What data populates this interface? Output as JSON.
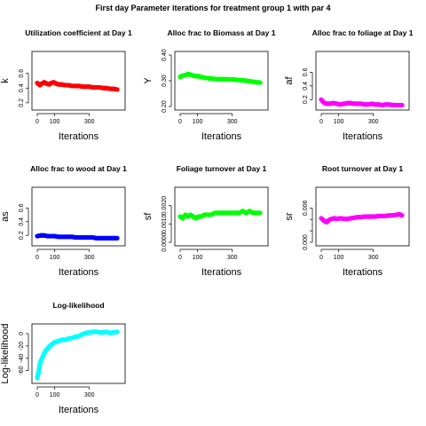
{
  "figure": {
    "title": "First day Parameter iterations for treatment group 1 with par 4"
  },
  "chart_data": [
    {
      "type": "scatter",
      "title": "Utilization coefficient at Day 1",
      "xlabel": "Iterations",
      "ylabel": "k",
      "color": "#ff0000",
      "xlim": [
        0,
        475
      ],
      "ylim": [
        0.15,
        0.85
      ],
      "xticks": [
        0,
        100,
        300
      ],
      "yticks": [
        0.2,
        0.4,
        0.6
      ],
      "ytick_labels": [
        "0.2",
        "0.4",
        "0.6"
      ],
      "x": [
        0,
        15,
        25,
        40,
        55,
        70,
        80,
        95,
        110,
        125,
        140,
        160,
        180,
        200,
        220,
        240,
        260,
        280,
        300,
        320,
        340,
        360,
        380,
        400,
        420,
        440,
        460
      ],
      "y": [
        0.47,
        0.44,
        0.46,
        0.48,
        0.46,
        0.45,
        0.47,
        0.48,
        0.46,
        0.45,
        0.45,
        0.44,
        0.44,
        0.43,
        0.43,
        0.43,
        0.42,
        0.42,
        0.42,
        0.41,
        0.41,
        0.41,
        0.4,
        0.4,
        0.39,
        0.39,
        0.38
      ]
    },
    {
      "type": "scatter",
      "title": "Alloc frac to Biomass at Day 1",
      "xlabel": "Iterations",
      "ylabel": "Y",
      "color": "#00ff00",
      "xlim": [
        0,
        475
      ],
      "ylim": [
        0.2,
        0.4
      ],
      "xticks": [
        0,
        100,
        300
      ],
      "yticks": [
        0.2,
        0.3,
        0.4
      ],
      "ytick_labels": [
        "0.20",
        "0.30",
        "0.40"
      ],
      "x": [
        0,
        15,
        30,
        45,
        60,
        75,
        90,
        105,
        120,
        140,
        160,
        180,
        200,
        220,
        240,
        260,
        280,
        300,
        320,
        340,
        360,
        380,
        400,
        420,
        440,
        460
      ],
      "y": [
        0.315,
        0.32,
        0.322,
        0.326,
        0.324,
        0.32,
        0.318,
        0.318,
        0.315,
        0.312,
        0.31,
        0.309,
        0.307,
        0.306,
        0.306,
        0.306,
        0.305,
        0.305,
        0.304,
        0.303,
        0.302,
        0.3,
        0.298,
        0.296,
        0.294,
        0.293
      ]
    },
    {
      "type": "scatter",
      "title": "Alloc frac to foliage at Day 1",
      "xlabel": "Iterations",
      "ylabel": "af",
      "color": "#ff00ff",
      "xlim": [
        0,
        475
      ],
      "ylim": [
        0.1,
        0.85
      ],
      "xticks": [
        0,
        100,
        300
      ],
      "yticks": [
        0.2,
        0.4,
        0.6
      ],
      "ytick_labels": [
        "0.2",
        "0.4",
        "0.6"
      ],
      "x": [
        0,
        10,
        20,
        35,
        50,
        70,
        90,
        110,
        130,
        150,
        170,
        190,
        210,
        230,
        250,
        270,
        290,
        310,
        330,
        350,
        370,
        390,
        410,
        430,
        450,
        465
      ],
      "y": [
        0.2,
        0.17,
        0.15,
        0.14,
        0.14,
        0.15,
        0.14,
        0.13,
        0.14,
        0.15,
        0.15,
        0.14,
        0.14,
        0.14,
        0.13,
        0.13,
        0.14,
        0.13,
        0.13,
        0.12,
        0.13,
        0.13,
        0.12,
        0.12,
        0.12,
        0.12
      ]
    },
    {
      "type": "scatter",
      "title": "Alloc frac to wood at Day 1",
      "xlabel": "Iterations",
      "ylabel": "as",
      "color": "#0000ff",
      "xlim": [
        0,
        475
      ],
      "ylim": [
        0.1,
        0.85
      ],
      "xticks": [
        0,
        100,
        300
      ],
      "yticks": [
        0.2,
        0.4,
        0.6
      ],
      "ytick_labels": [
        "0.2",
        "0.4",
        "0.6"
      ],
      "x": [
        0,
        20,
        40,
        60,
        80,
        100,
        120,
        140,
        160,
        180,
        200,
        220,
        240,
        260,
        280,
        300,
        320,
        340,
        360,
        380,
        400,
        420,
        440,
        460
      ],
      "y": [
        0.19,
        0.2,
        0.2,
        0.19,
        0.19,
        0.19,
        0.18,
        0.18,
        0.18,
        0.18,
        0.18,
        0.17,
        0.17,
        0.17,
        0.17,
        0.17,
        0.17,
        0.16,
        0.16,
        0.16,
        0.16,
        0.16,
        0.16,
        0.16
      ]
    },
    {
      "type": "scatter",
      "title": "Foliage turnover at Day 1",
      "xlabel": "Iterations",
      "ylabel": "sf",
      "color": "#00ff00",
      "xlim": [
        0,
        475
      ],
      "ylim": [
        0,
        0.0028
      ],
      "xticks": [
        0,
        100,
        300
      ],
      "yticks": [
        0,
        0.001,
        0.002
      ],
      "ytick_labels": [
        "0.0000",
        "0.0010",
        "0.0020"
      ],
      "x": [
        0,
        15,
        30,
        45,
        60,
        75,
        90,
        105,
        120,
        140,
        160,
        180,
        200,
        220,
        240,
        260,
        280,
        300,
        320,
        340,
        360,
        380,
        400,
        420,
        440,
        460
      ],
      "y": [
        0.0014,
        0.0013,
        0.0015,
        0.0014,
        0.0015,
        0.0014,
        0.0013,
        0.0014,
        0.0014,
        0.0015,
        0.0015,
        0.0015,
        0.0016,
        0.0016,
        0.0016,
        0.0016,
        0.0016,
        0.0016,
        0.0016,
        0.0016,
        0.0017,
        0.0016,
        0.0017,
        0.0016,
        0.0016,
        0.0016
      ]
    },
    {
      "type": "scatter",
      "title": "Root turnover at Day 1",
      "xlabel": "Iterations",
      "ylabel": "sr",
      "color": "#ff00ff",
      "xlim": [
        0,
        475
      ],
      "ylim": [
        0,
        0.009
      ],
      "xticks": [
        0,
        100,
        300
      ],
      "yticks": [
        0,
        0.002,
        0.004,
        0.006
      ],
      "ytick_labels": [
        "0.000",
        "",
        "",
        "0.006"
      ],
      "x": [
        0,
        15,
        30,
        45,
        60,
        75,
        90,
        110,
        130,
        150,
        170,
        190,
        210,
        230,
        250,
        270,
        290,
        310,
        330,
        350,
        370,
        390,
        410,
        430,
        450,
        465
      ],
      "y": [
        0.0042,
        0.0038,
        0.0035,
        0.0039,
        0.0041,
        0.0042,
        0.0041,
        0.0042,
        0.0041,
        0.0041,
        0.0042,
        0.0043,
        0.0044,
        0.0044,
        0.0045,
        0.0045,
        0.0045,
        0.0045,
        0.0046,
        0.0046,
        0.0046,
        0.0047,
        0.0047,
        0.0048,
        0.0049,
        0.0047
      ]
    },
    {
      "type": "scatter",
      "title": "Log-likelihood",
      "xlabel": "Iterations",
      "ylabel": "Log-likelihood",
      "color": "#00ffff",
      "xlim": [
        0,
        475
      ],
      "ylim": [
        -75,
        10
      ],
      "xticks": [
        0,
        100,
        300
      ],
      "yticks": [
        -60,
        -40,
        -20,
        0
      ],
      "ytick_labels": [
        "-60",
        "-40",
        "-20",
        "0"
      ],
      "x": [
        0,
        5,
        10,
        15,
        20,
        30,
        40,
        50,
        60,
        70,
        80,
        100,
        120,
        140,
        160,
        180,
        200,
        220,
        240,
        260,
        280,
        300,
        320,
        340,
        360,
        380,
        400,
        420,
        440,
        460
      ],
      "y": [
        -72,
        -65,
        -58,
        -50,
        -45,
        -38,
        -32,
        -27,
        -24,
        -21,
        -18,
        -14,
        -12,
        -10,
        -10,
        -8,
        -7,
        -5,
        -4,
        -1,
        1,
        2,
        3,
        3,
        2,
        2,
        3,
        1,
        2,
        3
      ]
    }
  ]
}
